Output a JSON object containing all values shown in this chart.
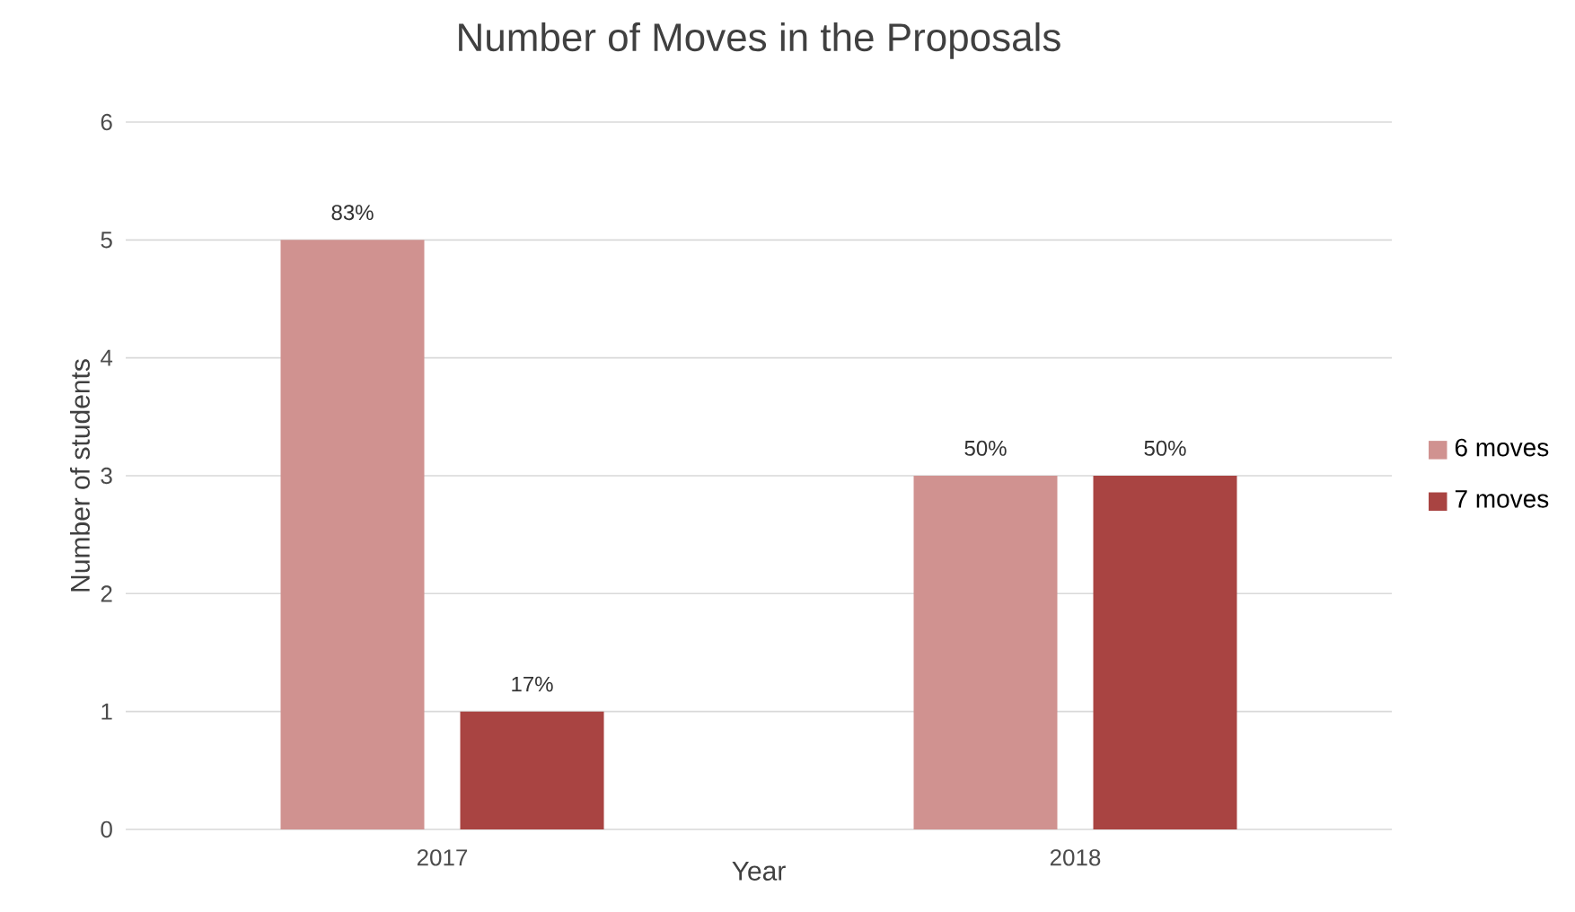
{
  "chart_data": {
    "type": "bar",
    "title": "Number of Moves in the Proposals",
    "xlabel": "Year",
    "ylabel": "Number of students",
    "categories": [
      "2017",
      "2018"
    ],
    "series": [
      {
        "name": "6 moves",
        "color": "#d09290",
        "values": [
          5,
          3
        ]
      },
      {
        "name": "7 moves",
        "color": "#a94442",
        "values": [
          1,
          3
        ]
      }
    ],
    "annotations": [
      "83%",
      "17%",
      "50%",
      "50%"
    ],
    "ylim": [
      0,
      6
    ],
    "yticks": [
      0,
      1,
      2,
      3,
      4,
      5,
      6
    ],
    "grid": "y",
    "legend": "right"
  }
}
